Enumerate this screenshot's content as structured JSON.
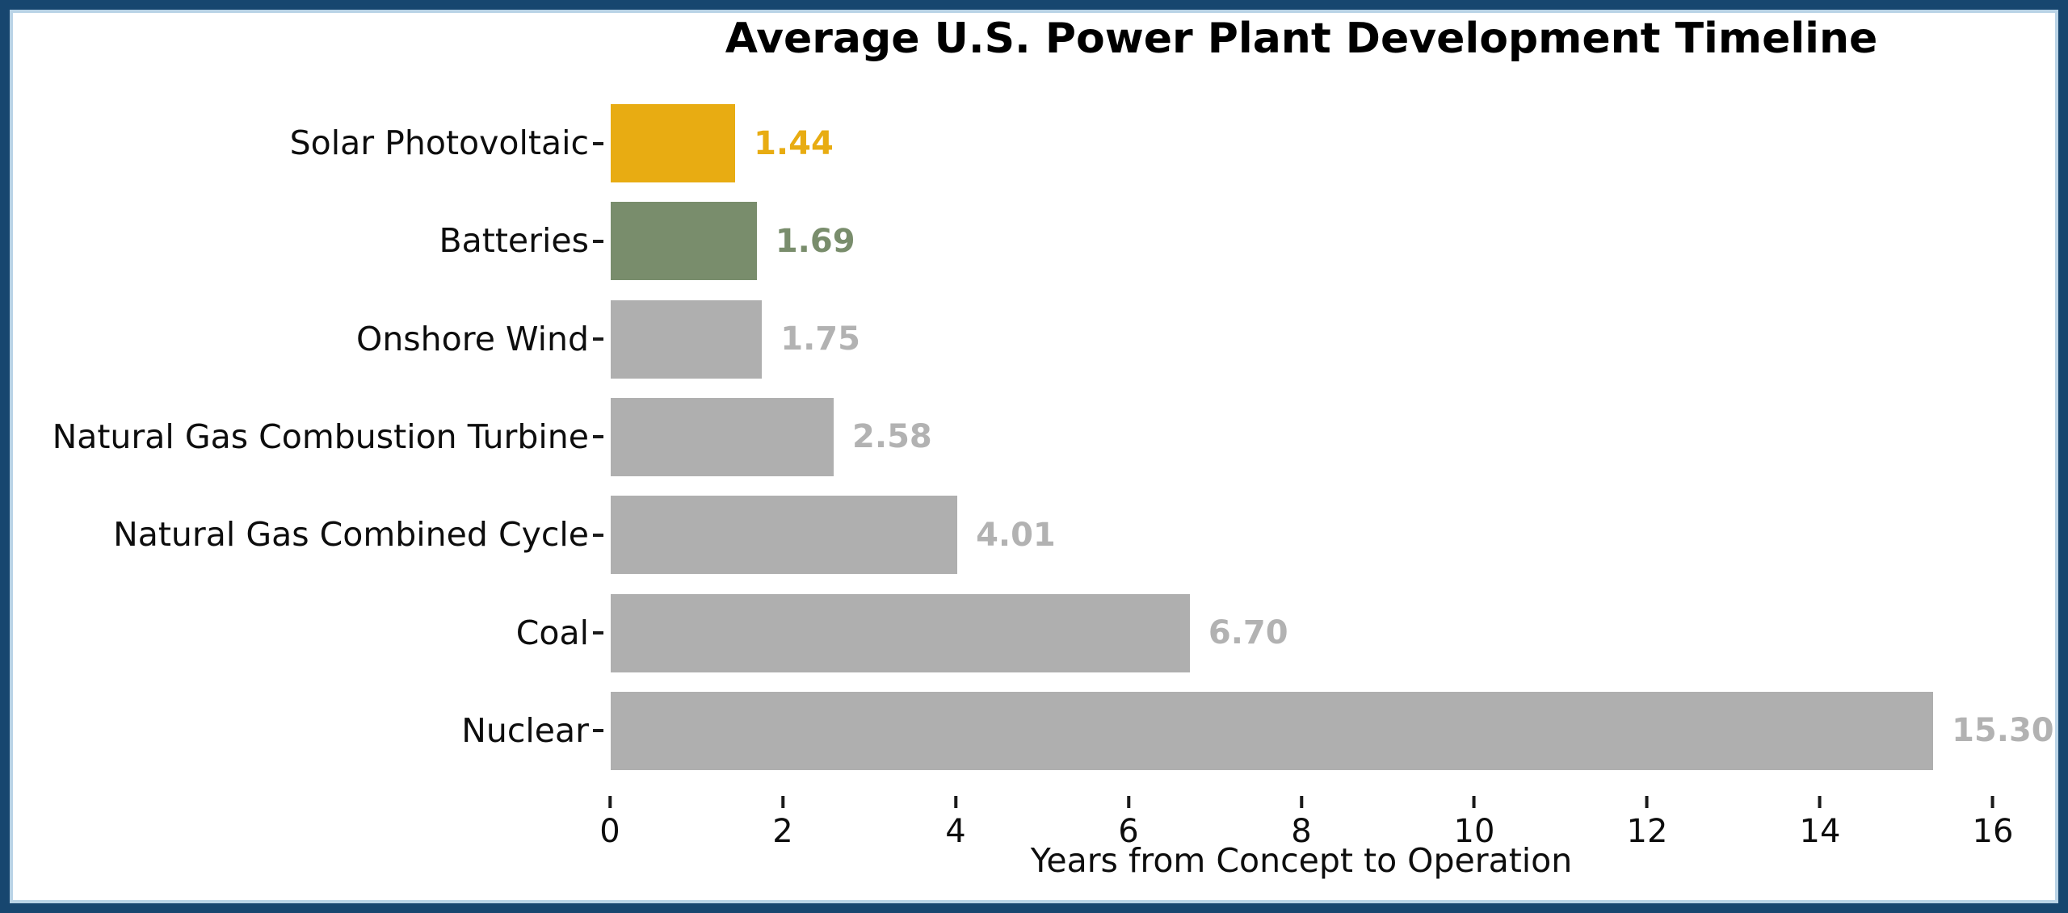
{
  "frame": {
    "border_color": "#17466F",
    "inner_edge_color": "#b9d3e6",
    "background_color": "#ffffff"
  },
  "chart_data": {
    "type": "bar",
    "orientation": "horizontal",
    "title": "Average U.S. Power Plant Development Timeline",
    "xlabel": "Years from Concept to Operation",
    "ylabel": "",
    "categories": [
      "Solar Photovoltaic",
      "Batteries",
      "Onshore Wind",
      "Natural Gas Combustion Turbine",
      "Natural Gas Combined Cycle",
      "Coal",
      "Nuclear"
    ],
    "values": [
      1.44,
      1.69,
      1.75,
      2.58,
      4.01,
      6.7,
      15.3
    ],
    "value_labels": [
      "1.44",
      "1.69",
      "1.75",
      "2.58",
      "4.01",
      "6.70",
      "15.30"
    ],
    "bar_colors": [
      "#E8AC12",
      "#798D6C",
      "#AFAFAF",
      "#AFAFAF",
      "#AFAFAF",
      "#AFAFAF",
      "#AFAFAF"
    ],
    "value_label_colors": [
      "#E8AC12",
      "#798D6C",
      "#B2B2B2",
      "#B2B2B2",
      "#B2B2B2",
      "#B2B2B2",
      "#B2B2B2"
    ],
    "xlim": [
      0,
      16
    ],
    "xticks": [
      0,
      2,
      4,
      6,
      8,
      10,
      12,
      14,
      16
    ],
    "grid": false,
    "legend": false,
    "tick_color": "#1a1a1a",
    "text_color": "#0d0d0d"
  }
}
